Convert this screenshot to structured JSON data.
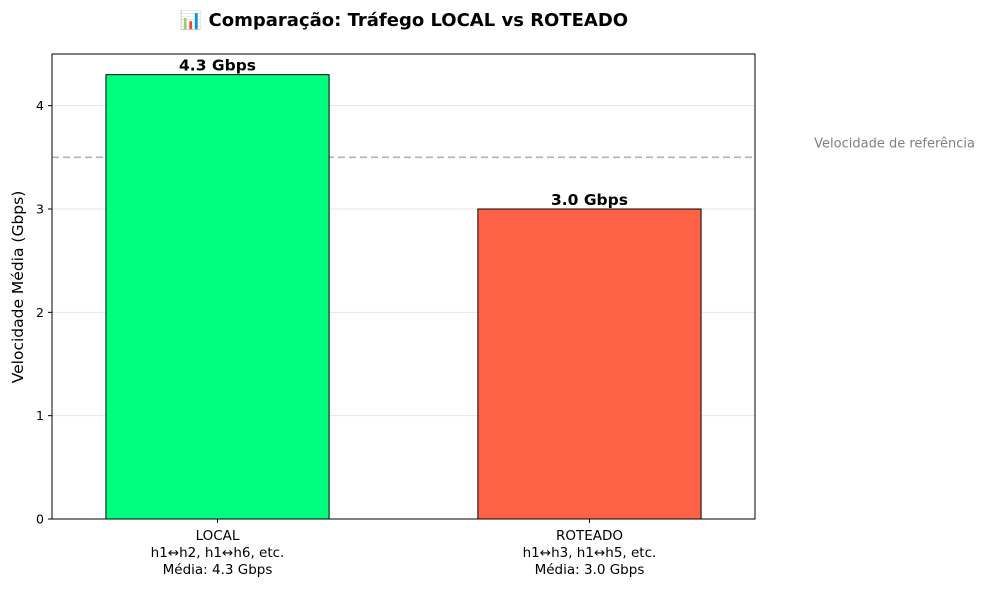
{
  "chart_data": {
    "type": "bar",
    "title": "📊 Comparação: Tráfego LOCAL vs ROTEADO",
    "xlabel": "",
    "ylabel": "Velocidade Média (Gbps)",
    "ylim": [
      0,
      4.5
    ],
    "yticks": [
      "0",
      "1",
      "2",
      "3",
      "4"
    ],
    "grid": "y",
    "categories": [
      {
        "name": "LOCAL",
        "detail": "h1↔h2, h1↔h6, etc.",
        "mean_text": "Média: 4.3 Gbps"
      },
      {
        "name": "ROTEADO",
        "detail": "h1↔h3, h1↔h5, etc.",
        "mean_text": "Média: 3.0 Gbps"
      }
    ],
    "values": [
      4.3,
      3.0
    ],
    "data_labels": [
      "4.3 Gbps",
      "3.0 Gbps"
    ],
    "colors": [
      "#00ff7f",
      "#ff6347"
    ],
    "reference_line": {
      "value": 3.5,
      "label": "Velocidade de referência",
      "color": "#b3b3b3"
    }
  }
}
